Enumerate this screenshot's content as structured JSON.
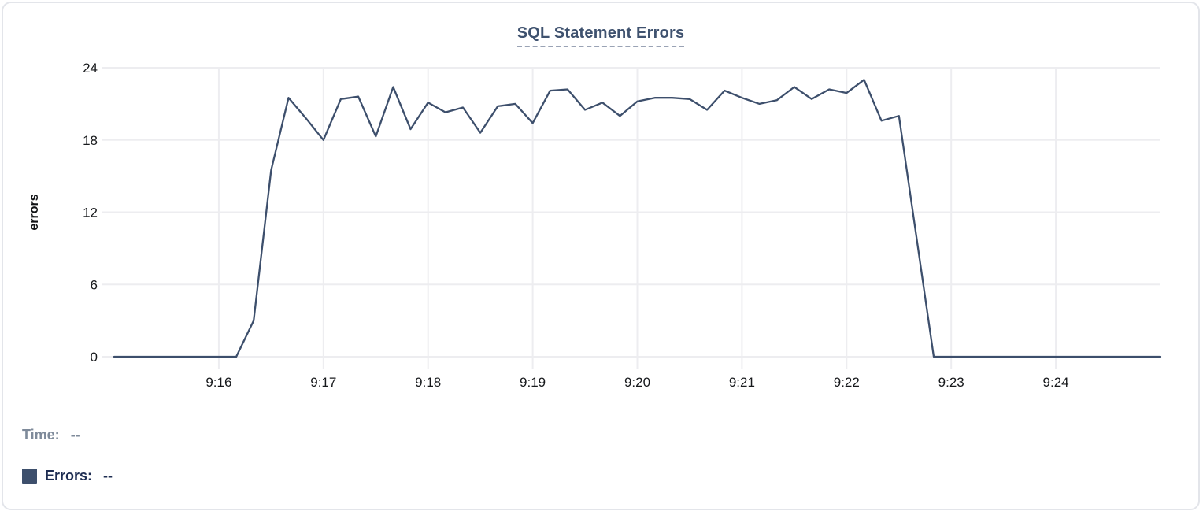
{
  "legend": {
    "time_label": "Time:",
    "time_value": "--",
    "errors_label": "Errors:",
    "errors_value": "--"
  },
  "colors": {
    "series_line": "#3d4f6c",
    "legend_swatch": "#3d4f6c",
    "title_text": "#3f526f",
    "title_underline": "#9aa3b5",
    "grid": "#ededf0",
    "axis_text": "#17191c",
    "axis_title_text": "#101214",
    "time_label_text": "#7e8a9a",
    "errors_label_text": "#1e2d52",
    "card_border": "#e3e5ea"
  },
  "chart_data": {
    "type": "line",
    "title": "SQL Statement Errors",
    "xlabel": "",
    "ylabel": "errors",
    "grid": true,
    "legend_position": "bottom-left",
    "ylim": [
      0,
      24
    ],
    "y_ticks": [
      0,
      6,
      12,
      18,
      24
    ],
    "x_range": [
      "9:15:00",
      "9:25:00"
    ],
    "x_ticks": [
      "9:16",
      "9:17",
      "9:18",
      "9:19",
      "9:20",
      "9:21",
      "9:22",
      "9:23",
      "9:24"
    ],
    "series": [
      {
        "name": "Errors",
        "points": [
          [
            "9:15:00",
            0
          ],
          [
            "9:15:10",
            0
          ],
          [
            "9:15:20",
            0
          ],
          [
            "9:15:30",
            0
          ],
          [
            "9:15:40",
            0
          ],
          [
            "9:15:50",
            0
          ],
          [
            "9:16:00",
            0
          ],
          [
            "9:16:10",
            0
          ],
          [
            "9:16:20",
            3
          ],
          [
            "9:16:30",
            15.5
          ],
          [
            "9:16:40",
            21.5
          ],
          [
            "9:16:50",
            19.8
          ],
          [
            "9:17:00",
            18
          ],
          [
            "9:17:10",
            21.4
          ],
          [
            "9:17:20",
            21.6
          ],
          [
            "9:17:30",
            18.3
          ],
          [
            "9:17:40",
            22.4
          ],
          [
            "9:17:50",
            18.9
          ],
          [
            "9:18:00",
            21.1
          ],
          [
            "9:18:10",
            20.3
          ],
          [
            "9:18:20",
            20.7
          ],
          [
            "9:18:30",
            18.6
          ],
          [
            "9:18:40",
            20.8
          ],
          [
            "9:18:50",
            21
          ],
          [
            "9:19:00",
            19.4
          ],
          [
            "9:19:10",
            22.1
          ],
          [
            "9:19:20",
            22.2
          ],
          [
            "9:19:30",
            20.5
          ],
          [
            "9:19:40",
            21.1
          ],
          [
            "9:19:50",
            20
          ],
          [
            "9:20:00",
            21.2
          ],
          [
            "9:20:10",
            21.5
          ],
          [
            "9:20:20",
            21.5
          ],
          [
            "9:20:30",
            21.4
          ],
          [
            "9:20:40",
            20.5
          ],
          [
            "9:20:50",
            22.1
          ],
          [
            "9:21:00",
            21.5
          ],
          [
            "9:21:10",
            21
          ],
          [
            "9:21:20",
            21.3
          ],
          [
            "9:21:30",
            22.4
          ],
          [
            "9:21:40",
            21.4
          ],
          [
            "9:21:50",
            22.2
          ],
          [
            "9:22:00",
            21.9
          ],
          [
            "9:22:10",
            23
          ],
          [
            "9:22:20",
            19.6
          ],
          [
            "9:22:30",
            20
          ],
          [
            "9:22:40",
            10
          ],
          [
            "9:22:50",
            0
          ],
          [
            "9:23:00",
            0
          ],
          [
            "9:23:10",
            0
          ],
          [
            "9:23:20",
            0
          ],
          [
            "9:23:30",
            0
          ],
          [
            "9:23:40",
            0
          ],
          [
            "9:23:50",
            0
          ],
          [
            "9:24:00",
            0
          ],
          [
            "9:24:10",
            0
          ],
          [
            "9:24:20",
            0
          ],
          [
            "9:24:30",
            0
          ],
          [
            "9:24:40",
            0
          ],
          [
            "9:24:50",
            0
          ],
          [
            "9:25:00",
            0
          ]
        ]
      }
    ]
  }
}
